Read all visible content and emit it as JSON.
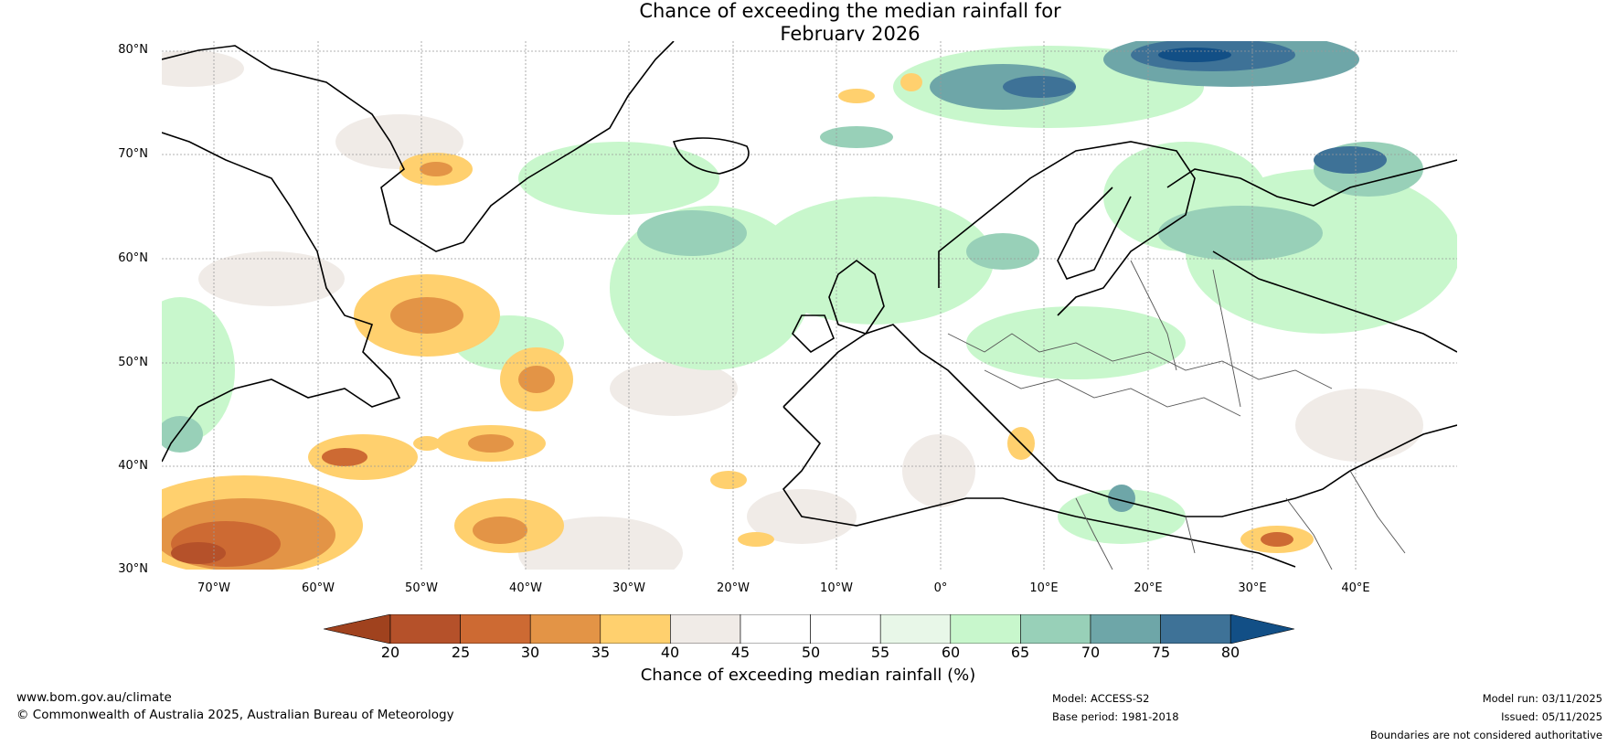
{
  "title": {
    "line1": "Chance of exceeding the median rainfall for",
    "line2": "February 2026"
  },
  "map": {
    "lat_labels": [
      "80°N",
      "70°N",
      "60°N",
      "50°N",
      "40°N",
      "30°N"
    ],
    "lon_labels": [
      "70°W",
      "60°W",
      "50°W",
      "40°W",
      "30°W",
      "20°W",
      "10°W",
      "0°",
      "10°E",
      "20°E",
      "30°E",
      "40°E"
    ]
  },
  "colorbar": {
    "ticks": [
      "20",
      "25",
      "30",
      "35",
      "40",
      "45",
      "50",
      "55",
      "60",
      "65",
      "70",
      "75",
      "80"
    ],
    "colors": [
      "#a0421e",
      "#b5512a",
      "#cd6a33",
      "#e39446",
      "#ffd06e",
      "#f0ebe7",
      "#ffffff",
      "#ffffff",
      "#e8f7e8",
      "#c8f7cc",
      "#98d0b8",
      "#6ea6a8",
      "#3e7297",
      "#124f86"
    ],
    "label": "Chance of exceeding median rainfall (%)"
  },
  "footer": {
    "url": "www.bom.gov.au/climate",
    "copyright": "© Commonwealth of Australia 2025, Australian Bureau of Meteorology",
    "model": "Model: ACCESS-S2",
    "base_period": "Base period: 1981-2018",
    "model_run": "Model run: 03/11/2025",
    "issued": "Issued: 05/11/2025",
    "disclaimer": "Boundaries are not considered authoritative"
  }
}
